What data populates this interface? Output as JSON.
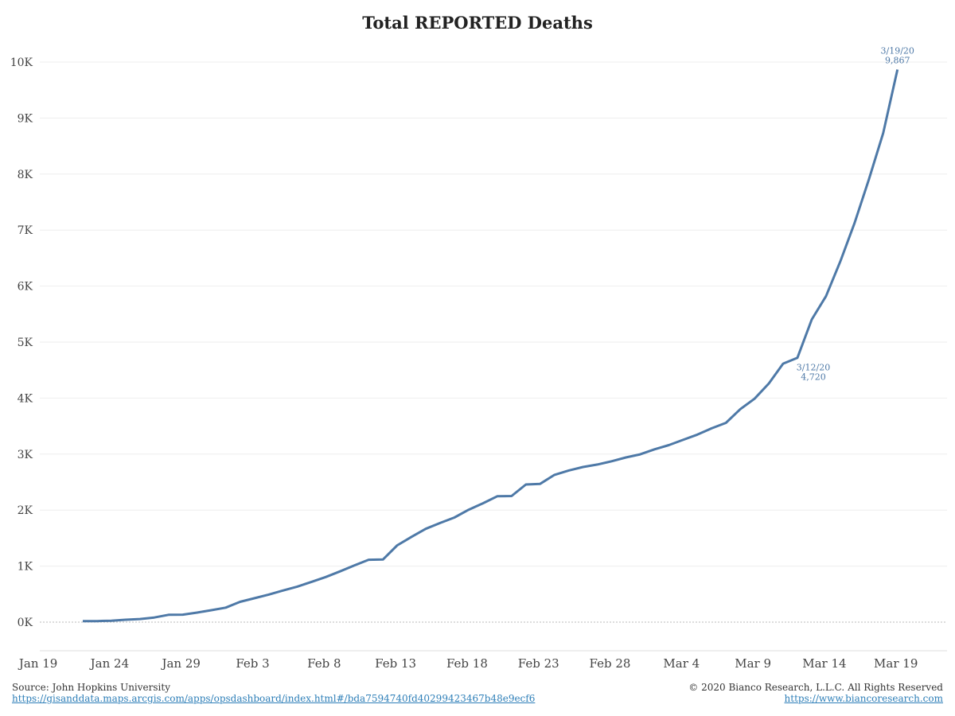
{
  "chart_data": {
    "type": "line",
    "title": "Total REPORTED Deaths",
    "xlabel": "",
    "ylabel": "",
    "x_start": "2020-01-22",
    "x_tick_labels": [
      "Jan 19",
      "Jan 24",
      "Jan 29",
      "Feb 3",
      "Feb 8",
      "Feb 13",
      "Feb 18",
      "Feb 23",
      "Feb 28",
      "Mar 4",
      "Mar 9",
      "Mar 14",
      "Mar 19"
    ],
    "y_tick_labels": [
      "0K",
      "1K",
      "2K",
      "3K",
      "4K",
      "5K",
      "6K",
      "7K",
      "8K",
      "9K",
      "10K"
    ],
    "ylim": [
      -500,
      10300
    ],
    "grid": true,
    "color": "#4e79a7",
    "series": [
      {
        "name": "",
        "x": [
          "2020-01-22",
          "2020-01-23",
          "2020-01-24",
          "2020-01-25",
          "2020-01-26",
          "2020-01-27",
          "2020-01-28",
          "2020-01-29",
          "2020-01-30",
          "2020-01-31",
          "2020-02-01",
          "2020-02-02",
          "2020-02-03",
          "2020-02-04",
          "2020-02-05",
          "2020-02-06",
          "2020-02-07",
          "2020-02-08",
          "2020-02-09",
          "2020-02-10",
          "2020-02-11",
          "2020-02-12",
          "2020-02-13",
          "2020-02-14",
          "2020-02-15",
          "2020-02-16",
          "2020-02-17",
          "2020-02-18",
          "2020-02-19",
          "2020-02-20",
          "2020-02-21",
          "2020-02-22",
          "2020-02-23",
          "2020-02-24",
          "2020-02-25",
          "2020-02-26",
          "2020-02-27",
          "2020-02-28",
          "2020-02-29",
          "2020-03-01",
          "2020-03-02",
          "2020-03-03",
          "2020-03-04",
          "2020-03-05",
          "2020-03-06",
          "2020-03-07",
          "2020-03-08",
          "2020-03-09",
          "2020-03-10",
          "2020-03-11",
          "2020-03-12",
          "2020-03-13",
          "2020-03-14",
          "2020-03-15",
          "2020-03-16",
          "2020-03-17",
          "2020-03-18",
          "2020-03-19"
        ],
        "values": [
          17,
          18,
          26,
          42,
          56,
          82,
          131,
          133,
          171,
          213,
          259,
          362,
          426,
          492,
          564,
          634,
          719,
          806,
          906,
          1013,
          1113,
          1118,
          1371,
          1523,
          1666,
          1770,
          1868,
          2007,
          2122,
          2247,
          2251,
          2458,
          2469,
          2629,
          2708,
          2770,
          2814,
          2872,
          2941,
          2996,
          3085,
          3160,
          3254,
          3348,
          3460,
          3558,
          3802,
          3988,
          4262,
          4615,
          4720,
          5404,
          5819,
          6440,
          7126,
          7905,
          8733,
          9867
        ]
      }
    ],
    "annotations": [
      {
        "date_label": "3/19/20",
        "value_label": "9,867",
        "x": "2020-03-19",
        "y": 9867
      },
      {
        "date_label": "3/12/20",
        "value_label": "4,720",
        "x": "2020-03-12",
        "y": 4720
      }
    ]
  },
  "footer": {
    "source": "Source: John Hopkins University",
    "source_url": "https://gisanddata.maps.arcgis.com/apps/opsdashboard/index.html#/bda7594740fd40299423467b48e9ecf6",
    "copyright": "© 2020 Bianco Research, L.L.C. All Rights Reserved",
    "site_url": "https://www.biancoresearch.com"
  }
}
